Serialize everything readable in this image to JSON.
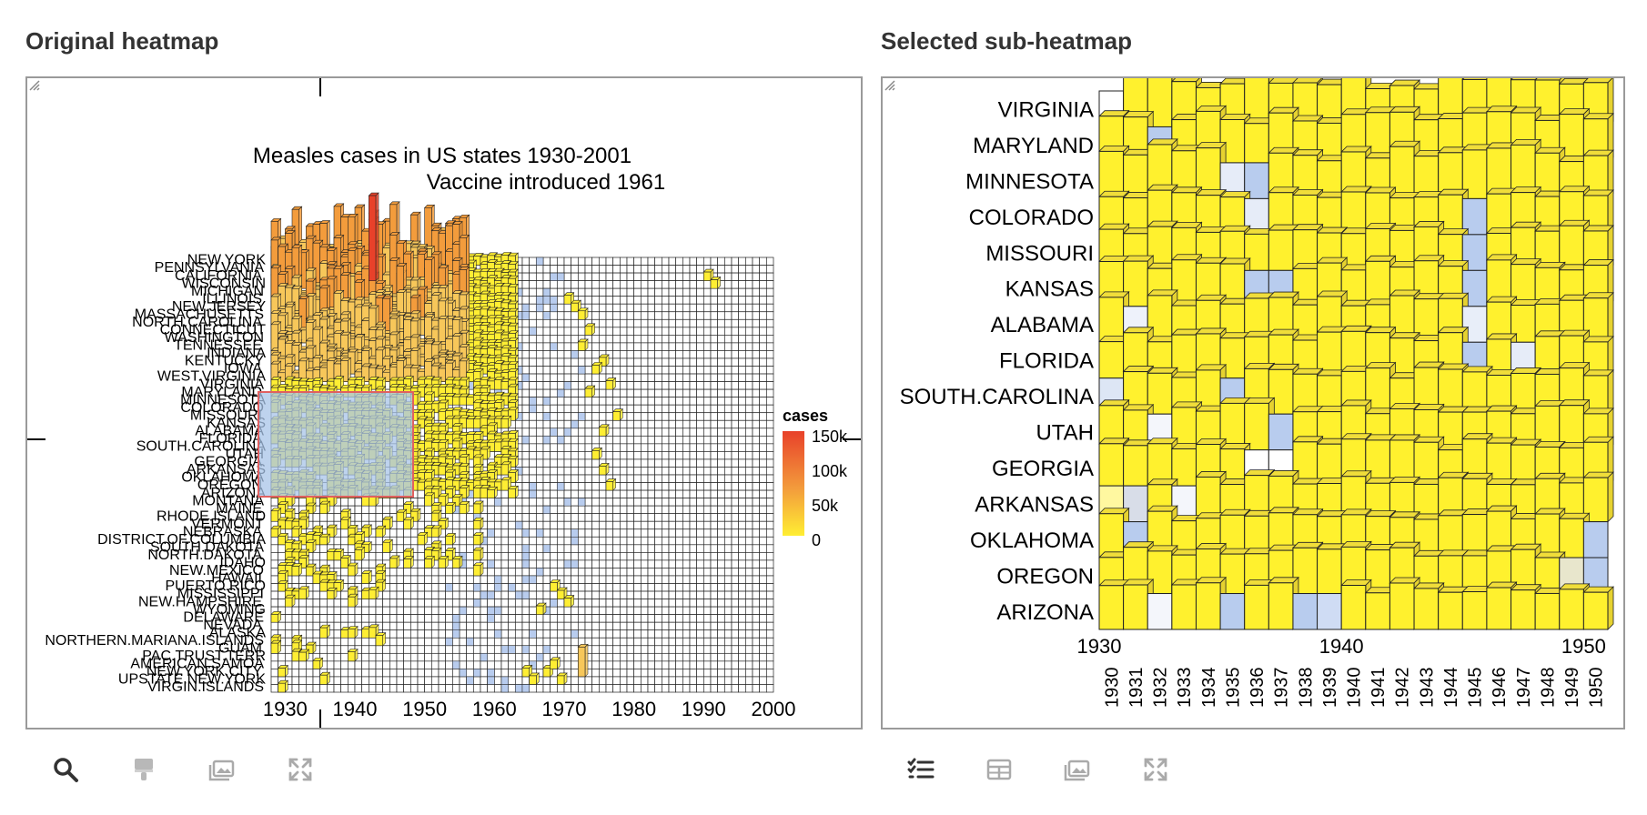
{
  "left_panel": {
    "title": "Original heatmap",
    "plot": {
      "title_line1": "Measles cases in US states 1930-2001",
      "title_line2": "Vaccine introduced 1961",
      "x_ticks": [
        "1930",
        "1940",
        "1950",
        "1960",
        "1970",
        "1980",
        "1990",
        "2000"
      ],
      "row_labels": [
        "NEW.YORK",
        "PENNSYLVANIA",
        "CALIFORNIA",
        "WISCONSIN",
        "MICHIGAN",
        "ILLINOIS",
        "NEW.JERSEY",
        "MASSACHUSETTS",
        "NORTH.CAROLINA",
        "CONNECTICUT",
        "WASHINGTON",
        "TENNESSEE",
        "INDIANA",
        "KENTUCKY",
        "IOWA",
        "WEST.VIRGINIA",
        "VIRGINIA",
        "MARYLAND",
        "MINNESOTA",
        "COLORADO",
        "MISSOURI",
        "KANSAS",
        "ALABAMA",
        "FLORIDA",
        "SOUTH.CAROLINA",
        "UTAH",
        "GEORGIA",
        "ARKANSAS",
        "OKLAHOMA",
        "OREGON",
        "ARIZONA",
        "MONTANA",
        "MAINE",
        "RHODE.ISLAND",
        "VERMONT",
        "NEBRASKA",
        "DISTRICT.OF.COLUMBIA",
        "SOUTH.DAKOTA",
        "NORTH.DAKOTA",
        "IDAHO",
        "NEW.MEXICO",
        "HAWAII",
        "PUERTO.RICO",
        "MISSISSIPPI",
        "NEW.HAMPSHIRE",
        "WYOMING",
        "DELAWARE",
        "NEVADA",
        "ALASKA",
        "NORTHERN.MARIANA.ISLANDS",
        "GUAM",
        "PAC.TRUST.TERR",
        "AMERICAN.SAMOA",
        "NEW.YORK.CITY",
        "UPSTATE.NEW.YORK",
        "VIRGIN.ISLANDS"
      ],
      "legend": {
        "title": "cases",
        "labels": [
          "150k",
          "100k",
          "50k",
          "0"
        ]
      }
    },
    "toolbar": [
      "search-icon",
      "brush-icon",
      "image-icon",
      "expand-icon"
    ]
  },
  "right_panel": {
    "title": "Selected sub-heatmap",
    "plot": {
      "row_labels": [
        "VIRGINIA",
        "MARYLAND",
        "MINNESOTA",
        "COLORADO",
        "MISSOURI",
        "KANSAS",
        "ALABAMA",
        "FLORIDA",
        "SOUTH.CAROLINA",
        "UTAH",
        "GEORGIA",
        "ARKANSAS",
        "OKLAHOMA",
        "OREGON",
        "ARIZONA"
      ],
      "x_axis_ticks": [
        "1930",
        "1940",
        "1950"
      ],
      "column_labels": [
        "1930",
        "1931",
        "1932",
        "1933",
        "1934",
        "1935",
        "1936",
        "1937",
        "1938",
        "1939",
        "1940",
        "1941",
        "1942",
        "1943",
        "1944",
        "1945",
        "1946",
        "1947",
        "1948",
        "1949",
        "1950"
      ]
    },
    "toolbar": [
      "list-check-icon",
      "table-icon",
      "image-icon",
      "expand-icon"
    ]
  },
  "colors": {
    "high": "#e8412a",
    "mid": "#f39c3c",
    "low": "#ffee33",
    "zero": "#ffffff",
    "lowvalue": "#b8ccee",
    "selection_fill": "#a8c4e8",
    "selection_border": "#e06060"
  }
}
